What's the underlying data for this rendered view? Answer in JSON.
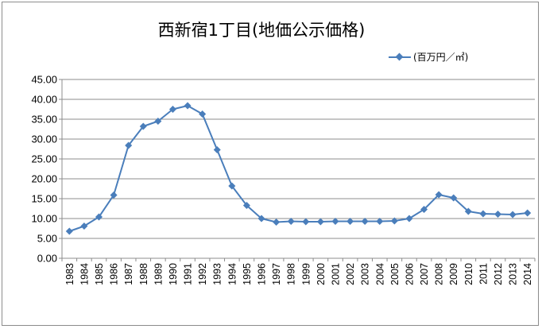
{
  "chart_data": {
    "type": "line",
    "title": "西新宿1丁目(地価公示価格)",
    "legend_position": "top-right",
    "grid": true,
    "ylim": [
      0,
      45
    ],
    "y_step": 5,
    "y_tick_labels": [
      "0.00",
      "5.00",
      "10.00",
      "15.00",
      "20.00",
      "25.00",
      "30.00",
      "35.00",
      "40.00",
      "45.00"
    ],
    "categories": [
      "1983",
      "1984",
      "1985",
      "1986",
      "1987",
      "1988",
      "1989",
      "1990",
      "1991",
      "1992",
      "1993",
      "1994",
      "1995",
      "1996",
      "1997",
      "1998",
      "1999",
      "2000",
      "2001",
      "2002",
      "2003",
      "2004",
      "2005",
      "2006",
      "2007",
      "2008",
      "2009",
      "2010",
      "2011",
      "2012",
      "2013",
      "2014"
    ],
    "series": [
      {
        "name": "(百万円／㎡)",
        "color": "#4a7ebb",
        "values": [
          6.8,
          8.1,
          10.4,
          15.9,
          28.4,
          33.2,
          34.5,
          37.5,
          38.4,
          36.3,
          27.3,
          18.2,
          13.3,
          10.0,
          9.1,
          9.3,
          9.2,
          9.2,
          9.3,
          9.3,
          9.3,
          9.3,
          9.4,
          10.0,
          12.3,
          16.0,
          15.2,
          11.8,
          11.2,
          11.1,
          11.0,
          11.4
        ]
      }
    ]
  }
}
